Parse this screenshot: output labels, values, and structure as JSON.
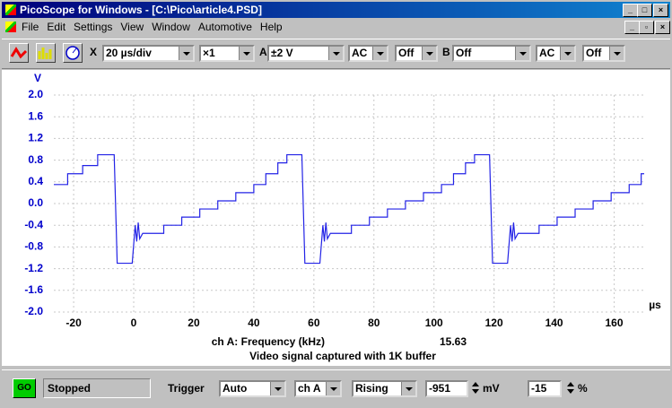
{
  "window": {
    "title": "PicoScope for Windows - [C:\\Pico\\article4.PSD]"
  },
  "menu": [
    "File",
    "Edit",
    "Settings",
    "View",
    "Window",
    "Automotive",
    "Help"
  ],
  "toolbar": {
    "x_label": "X",
    "timebase": "20 µs/div",
    "zoom": "×1",
    "a_label": "A",
    "a_range": "±2 V",
    "a_coupling": "AC",
    "a_offset": "Off",
    "b_label": "B",
    "b_range": "Off",
    "b_coupling": "AC",
    "b_offset": "Off"
  },
  "chart_data": {
    "type": "line",
    "x_label": "µs",
    "y_label": "V",
    "xlim": [
      -26.6,
      170
    ],
    "ylim": [
      -2,
      2
    ],
    "xticks": [
      -20,
      0,
      20,
      40,
      60,
      80,
      100,
      120,
      140,
      160
    ],
    "yticks": [
      {
        "value": -2,
        "label": "-2.0"
      },
      -1.6,
      -1.2,
      -0.8,
      -0.4,
      {
        "value": 0,
        "label": "0.0"
      },
      0.4,
      0.8,
      1.2,
      1.6,
      {
        "value": 2,
        "label": "2.0"
      }
    ],
    "grid": true,
    "measurement": {
      "label": "ch A: Frequency (kHz)",
      "value": 15.63
    },
    "subtitle": "Video signal captured with 1K buffer",
    "series": [
      {
        "color": "#2323e6",
        "x": [
          -26.6,
          -22,
          -22,
          -17,
          -17,
          -12,
          -12,
          -6.5,
          -5.5,
          -0.5,
          0.5,
          1,
          1.5,
          2,
          3,
          10,
          10,
          16,
          16,
          22,
          22,
          28,
          28,
          34,
          34,
          40,
          40,
          44,
          44,
          48,
          48,
          51,
          51,
          56,
          57,
          62,
          63,
          63.5,
          64,
          64.5,
          65.5,
          72.5,
          72.5,
          78.5,
          78.5,
          84.5,
          84.5,
          90.5,
          90.5,
          96.5,
          96.5,
          102.5,
          102.5,
          106.5,
          106.5,
          110.5,
          110.5,
          113.5,
          113.5,
          118.5,
          119.5,
          124.5,
          125.5,
          126,
          126.5,
          127,
          128,
          135,
          135,
          141,
          141,
          147,
          147,
          153,
          153,
          159,
          159,
          165,
          165,
          169,
          169,
          170
        ],
        "values": [
          0.35,
          0.35,
          0.55,
          0.55,
          0.7,
          0.7,
          0.9,
          0.9,
          -1.1,
          -1.1,
          -0.4,
          -0.7,
          -0.35,
          -0.65,
          -0.55,
          -0.55,
          -0.4,
          -0.4,
          -0.25,
          -0.25,
          -0.1,
          -0.1,
          0.05,
          0.05,
          0.2,
          0.2,
          0.35,
          0.35,
          0.55,
          0.55,
          0.75,
          0.75,
          0.9,
          0.9,
          -1.1,
          -1.1,
          -0.4,
          -0.7,
          -0.35,
          -0.65,
          -0.55,
          -0.55,
          -0.4,
          -0.4,
          -0.25,
          -0.25,
          -0.1,
          -0.1,
          0.05,
          0.05,
          0.2,
          0.2,
          0.35,
          0.35,
          0.55,
          0.55,
          0.75,
          0.75,
          0.9,
          0.9,
          -1.1,
          -1.1,
          -0.4,
          -0.7,
          -0.35,
          -0.65,
          -0.55,
          -0.55,
          -0.4,
          -0.4,
          -0.25,
          -0.25,
          -0.1,
          -0.1,
          0.05,
          0.05,
          0.2,
          0.2,
          0.35,
          0.35,
          0.55,
          0.55
        ]
      }
    ]
  },
  "status": {
    "go": "GO",
    "state": "Stopped",
    "trigger_label": "Trigger",
    "trigger_mode": "Auto",
    "trigger_channel": "ch A",
    "trigger_edge": "Rising",
    "threshold": -951,
    "threshold_unit": "mV",
    "delay": -15,
    "delay_unit": "%"
  }
}
